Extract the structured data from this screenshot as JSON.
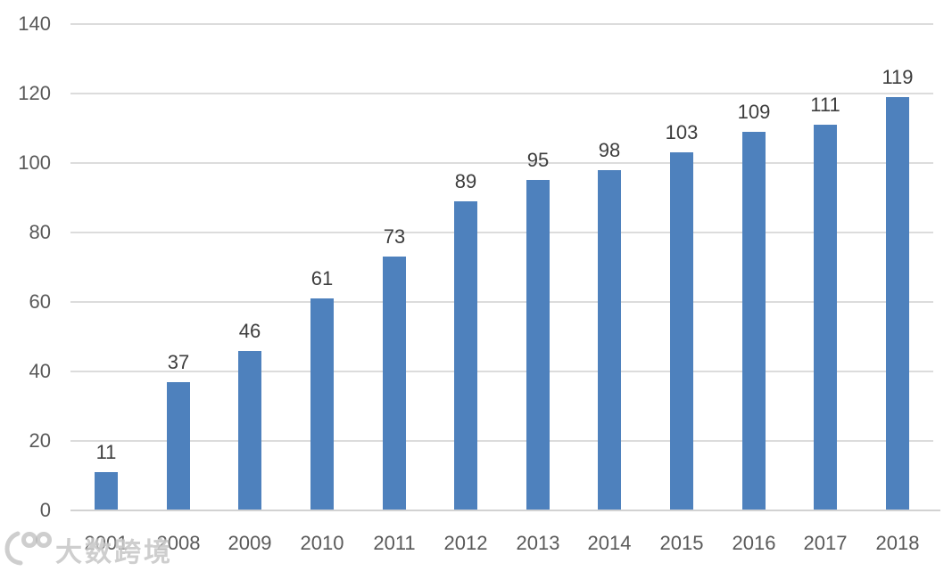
{
  "chart_data": {
    "type": "bar",
    "categories": [
      "2001",
      "2008",
      "2009",
      "2010",
      "2011",
      "2012",
      "2013",
      "2014",
      "2015",
      "2016",
      "2017",
      "2018"
    ],
    "values": [
      11,
      37,
      46,
      61,
      73,
      89,
      95,
      98,
      103,
      109,
      111,
      119
    ],
    "title": "",
    "xlabel": "",
    "ylabel": "",
    "ylim": [
      0,
      140
    ],
    "yticks": [
      0,
      20,
      40,
      60,
      80,
      100,
      120,
      140
    ],
    "grid": true,
    "legend": false,
    "data_labels_visible": true,
    "colors": {
      "bar": "#4e81bd",
      "gridline": "#dcdcdc",
      "axis_line": "#d2d2d2",
      "tick_label": "#595959",
      "data_label": "#3d3d3d"
    }
  },
  "watermark": {
    "logo": "100-swoosh",
    "text": "大数跨境"
  }
}
